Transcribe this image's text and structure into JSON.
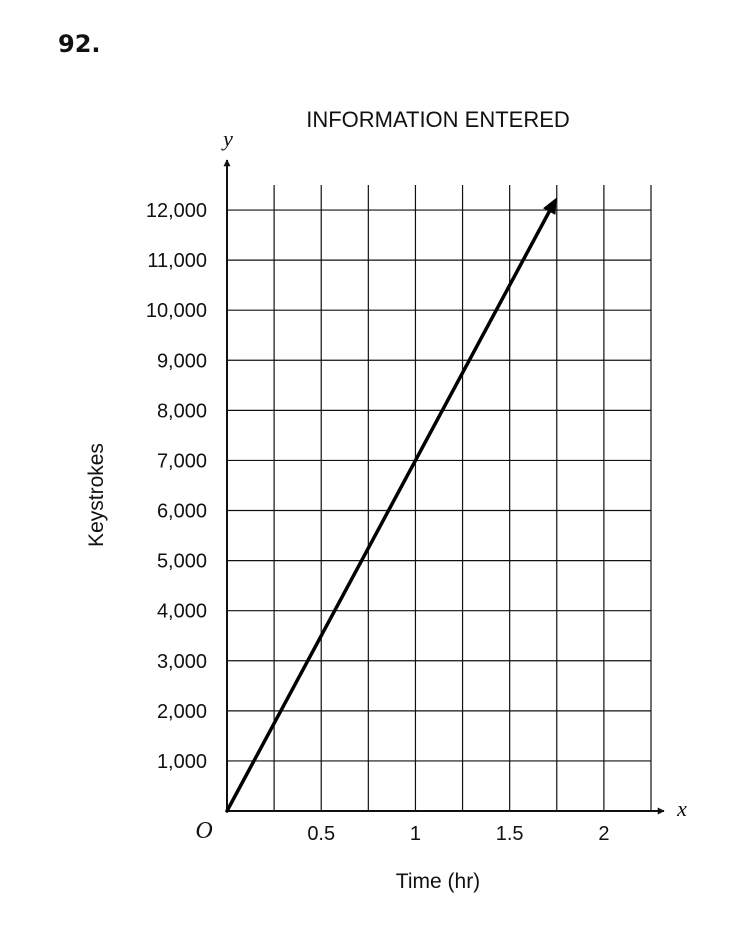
{
  "question_number": "92.",
  "chart_data": {
    "type": "line",
    "title": "INFORMATION ENTERED",
    "xlabel": "Time (hr)",
    "ylabel": "Keystrokes",
    "x_axis_var": "x",
    "y_axis_var": "y",
    "origin_label": "O",
    "xlim": [
      0,
      2.25
    ],
    "ylim": [
      0,
      12500
    ],
    "x_grid_step": 0.25,
    "y_grid_step": 1000,
    "x_tick_labels": [
      {
        "value": 0.5,
        "label": "0.5"
      },
      {
        "value": 1,
        "label": "1"
      },
      {
        "value": 1.5,
        "label": "1.5"
      },
      {
        "value": 2,
        "label": "2"
      }
    ],
    "y_tick_labels": [
      {
        "value": 1000,
        "label": "1,000"
      },
      {
        "value": 2000,
        "label": "2,000"
      },
      {
        "value": 3000,
        "label": "3,000"
      },
      {
        "value": 4000,
        "label": "4,000"
      },
      {
        "value": 5000,
        "label": "5,000"
      },
      {
        "value": 6000,
        "label": "6,000"
      },
      {
        "value": 7000,
        "label": "7,000"
      },
      {
        "value": 8000,
        "label": "8,000"
      },
      {
        "value": 9000,
        "label": "9,000"
      },
      {
        "value": 10000,
        "label": "10,000"
      },
      {
        "value": 11000,
        "label": "11,000"
      },
      {
        "value": 12000,
        "label": "12,000"
      }
    ],
    "grid": true,
    "series": [
      {
        "x": [
          0,
          1.75
        ],
        "y": [
          0,
          12250
        ],
        "arrow_end": true
      }
    ],
    "line_color": "#000000",
    "grid_color": "#111111"
  }
}
